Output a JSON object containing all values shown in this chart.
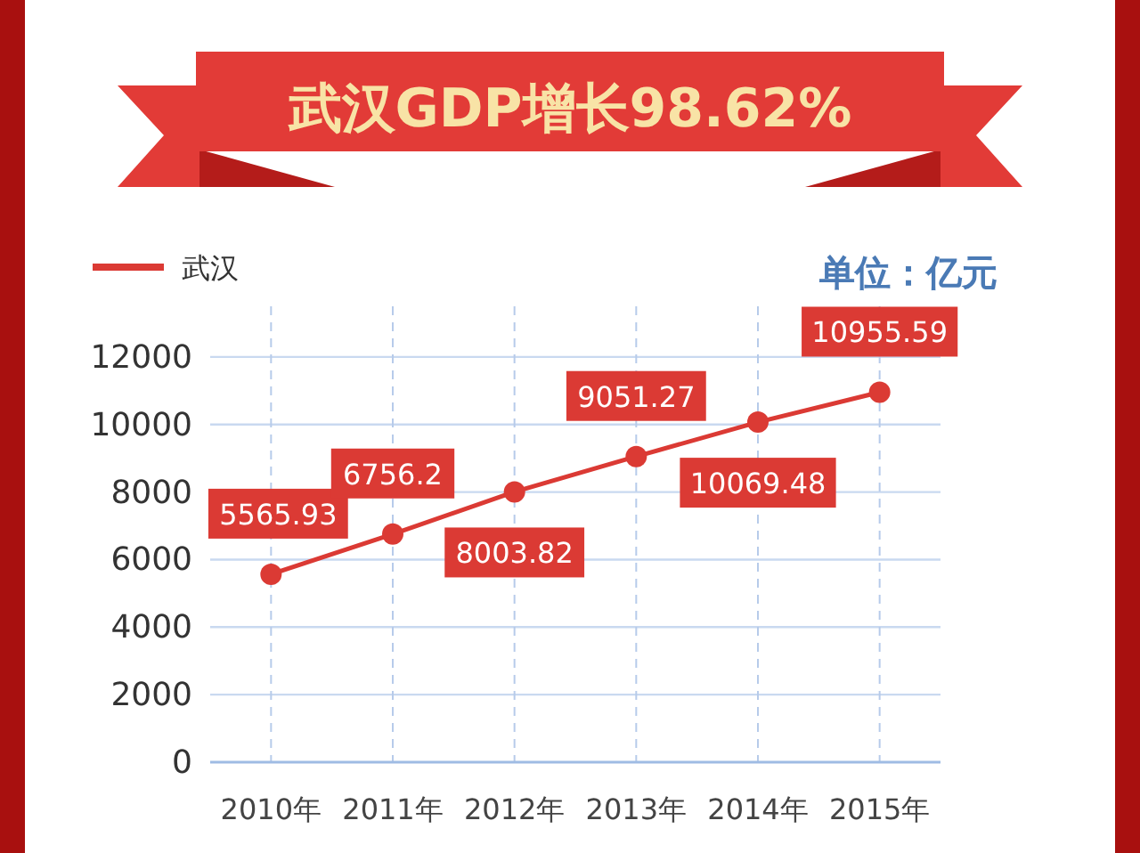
{
  "chart_data": {
    "type": "line",
    "title": "武汉GDP增长98.62%",
    "categories": [
      "2010年",
      "2011年",
      "2012年",
      "2013年",
      "2014年",
      "2015年"
    ],
    "series": [
      {
        "name": "武汉",
        "color": "#db3a34",
        "values": [
          5565.93,
          6756.2,
          8003.82,
          9051.27,
          10069.48,
          10955.59
        ]
      }
    ],
    "ylim": [
      0,
      13500
    ],
    "yticks": [
      0,
      2000,
      4000,
      6000,
      8000,
      10000,
      12000
    ],
    "grid": true,
    "legend": "top left",
    "marker": "circle",
    "line_style": "solid",
    "data_labels": true,
    "annotations": [
      "单位：亿元"
    ]
  }
}
